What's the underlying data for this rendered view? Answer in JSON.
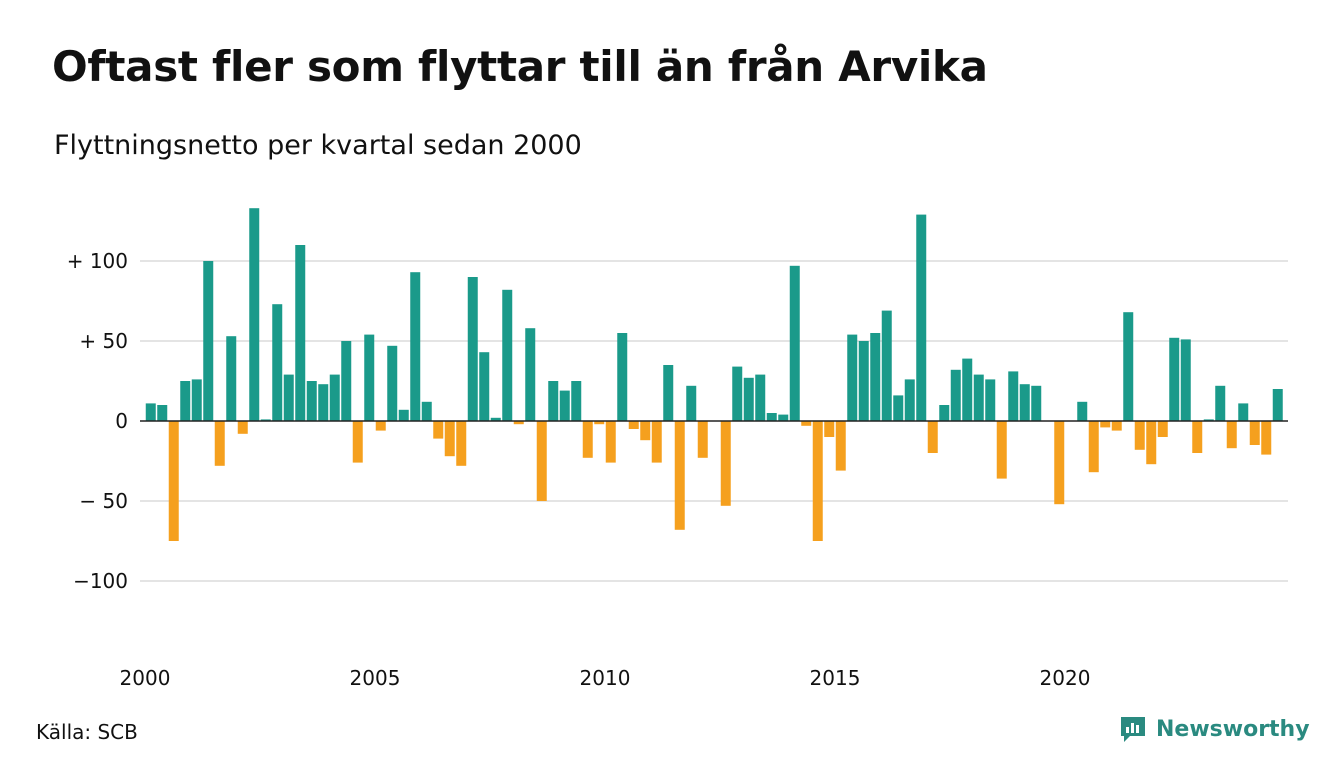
{
  "chart_data": {
    "type": "bar",
    "title": "Oftast fler som flyttar till än från Arvika",
    "subtitle": "Flyttningsnetto per kvartal sedan 2000",
    "xlabel": "",
    "ylabel": "",
    "ylim": [
      -140,
      140
    ],
    "yticks": [
      {
        "value": 100,
        "label": "+ 100"
      },
      {
        "value": 50,
        "label": "+  50"
      },
      {
        "value": 0,
        "label": "0"
      },
      {
        "value": -50,
        "label": "− 50"
      },
      {
        "value": -100,
        "label": "−100"
      }
    ],
    "xticks": [
      {
        "quarter_index": 0,
        "label": "2000"
      },
      {
        "quarter_index": 20,
        "label": "2005"
      },
      {
        "quarter_index": 40,
        "label": "2010"
      },
      {
        "quarter_index": 60,
        "label": "2015"
      },
      {
        "quarter_index": 80,
        "label": "2020"
      }
    ],
    "positive_color": "#1a9a8a",
    "negative_color": "#f5a01e",
    "grid": true,
    "series": [
      {
        "values": [
          11,
          10,
          -75,
          25,
          26,
          100,
          -28,
          53,
          -8,
          133,
          1,
          73,
          29,
          110,
          25,
          23,
          29,
          50,
          -26,
          54,
          -6,
          47,
          7,
          93,
          12,
          -11,
          -22,
          -28,
          90,
          43,
          2,
          82,
          -2,
          58,
          -50,
          25,
          19,
          25,
          -23,
          -2,
          -26,
          55,
          -5,
          -12,
          -26,
          35,
          -68,
          22,
          -23,
          0,
          -53,
          34,
          27,
          29,
          5,
          4,
          97,
          -3,
          -75,
          -10,
          -31,
          54,
          50,
          55,
          69,
          16,
          26,
          129,
          -20,
          10,
          32,
          39,
          29,
          26,
          -36,
          31,
          23,
          22,
          0,
          -52,
          0,
          12,
          -32,
          -4,
          -6,
          68,
          -18,
          -27,
          -10,
          52,
          51,
          -20,
          1,
          22,
          -17,
          11,
          -15,
          -21,
          20
        ]
      }
    ]
  },
  "footer": {
    "source": "Källa: SCB",
    "brand": "Newsworthy"
  },
  "icons": {
    "brand_logo": "newsworthy-logo-icon"
  }
}
